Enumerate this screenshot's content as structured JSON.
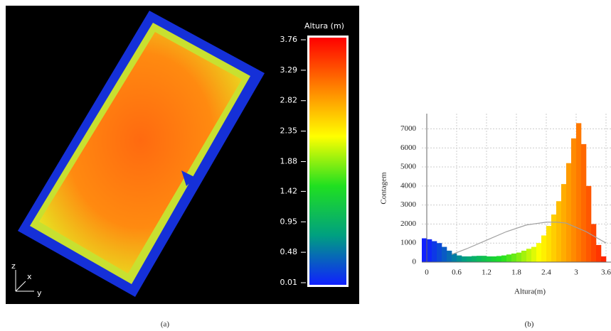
{
  "chart_data": [
    {
      "type": "colorbar",
      "title": "Altura (m)",
      "ylim": [
        0.01,
        3.76
      ],
      "yticks": [
        0.01,
        0.48,
        0.95,
        1.42,
        1.88,
        2.35,
        2.82,
        3.29,
        3.76
      ],
      "colors": [
        "#1020ff",
        "#00a080",
        "#20e020",
        "#ffff00",
        "#ff8000",
        "#ff0000"
      ],
      "axis_labels": [
        "z",
        "x",
        "y"
      ],
      "caption": "(a)"
    },
    {
      "type": "histogram",
      "xlabel": "Altura(m)",
      "ylabel": "Contagem",
      "caption": "(b)",
      "bins": [
        -0.1,
        0,
        0.1,
        0.2,
        0.3,
        0.4,
        0.5,
        0.6,
        0.7,
        0.8,
        0.9,
        1.0,
        1.1,
        1.2,
        1.3,
        1.4,
        1.5,
        1.6,
        1.7,
        1.8,
        1.9,
        2.0,
        2.1,
        2.2,
        2.3,
        2.4,
        2.5,
        2.6,
        2.7,
        2.8,
        2.9,
        3.0,
        3.1,
        3.2,
        3.3,
        3.4,
        3.5,
        3.6
      ],
      "counts": [
        1250,
        1200,
        1100,
        1000,
        800,
        600,
        450,
        350,
        300,
        300,
        320,
        330,
        330,
        300,
        300,
        320,
        350,
        400,
        450,
        500,
        600,
        700,
        800,
        1000,
        1400,
        1900,
        2500,
        3200,
        4100,
        5200,
        6500,
        7300,
        6200,
        4000,
        2000,
        900,
        300
      ],
      "curve": {
        "x": [
          0.5,
          0.8,
          1.2,
          1.6,
          2.0,
          2.4,
          2.6,
          2.8,
          3.2,
          3.6
        ],
        "values": [
          400,
          700,
          1150,
          1600,
          1950,
          2100,
          2100,
          2050,
          1600,
          1000
        ],
        "color": "#a0a0a0"
      },
      "xlim": [
        -0.1,
        3.6
      ],
      "xticks": [
        0,
        0.6,
        1.2,
        1.8,
        2.4,
        3,
        3.6
      ],
      "ylim": [
        0,
        7800
      ],
      "yticks": [
        0,
        1000,
        2000,
        3000,
        4000,
        5000,
        6000,
        7000
      ],
      "grid": true
    }
  ]
}
